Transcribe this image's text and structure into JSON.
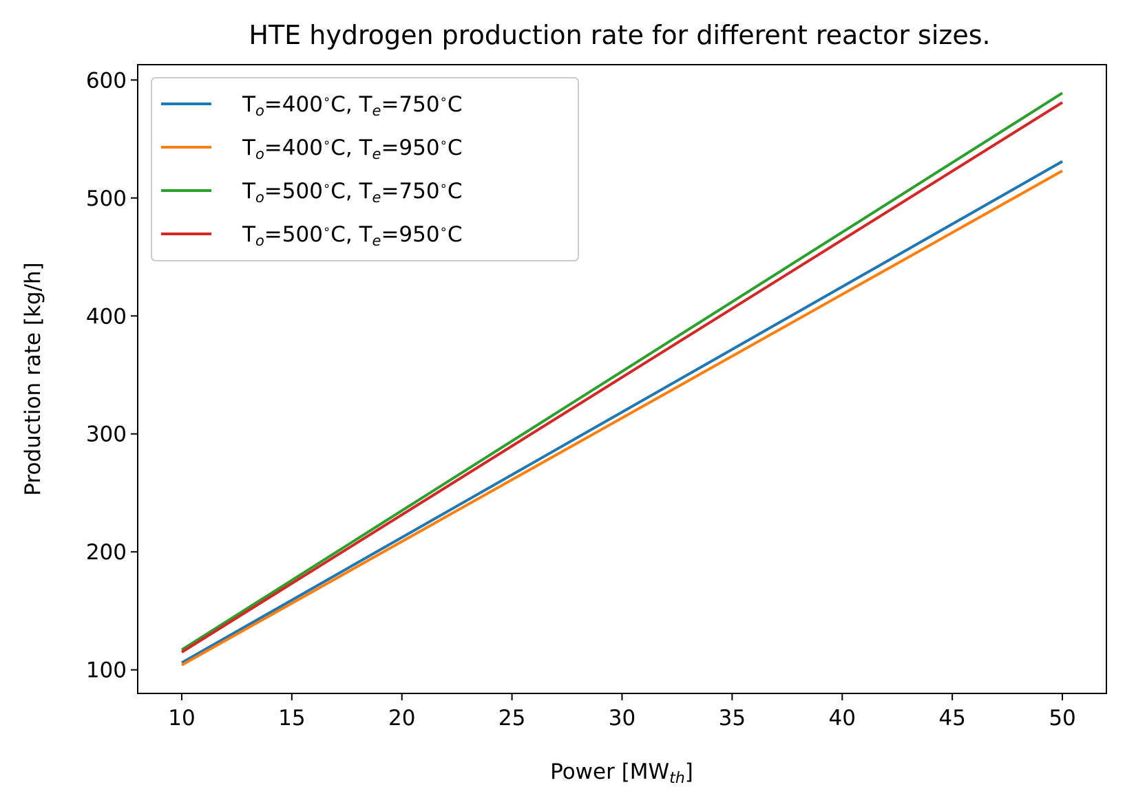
{
  "chart_data": {
    "type": "line",
    "title": "HTE hydrogen production rate for different reactor sizes.",
    "xlabel": {
      "main": "Power [MW",
      "sub": "th",
      "end": "]"
    },
    "ylabel": "Production rate [kg/h]",
    "xlim": [
      8,
      52
    ],
    "ylim": [
      80,
      613
    ],
    "xticks": [
      10,
      15,
      20,
      25,
      30,
      35,
      40,
      45,
      50
    ],
    "yticks": [
      100,
      200,
      300,
      400,
      500,
      600
    ],
    "grid": false,
    "legend_position": "upper-left",
    "series": [
      {
        "name": "To=400°C, Te=750°C",
        "label": {
          "to": "400",
          "te": "750"
        },
        "color": "#1f77b4",
        "x": [
          10,
          50
        ],
        "y": [
          106,
          531
        ]
      },
      {
        "name": "To=400°C, Te=950°C",
        "label": {
          "to": "400",
          "te": "950"
        },
        "color": "#ff7f0e",
        "x": [
          10,
          50
        ],
        "y": [
          104,
          523
        ]
      },
      {
        "name": "To=500°C, Te=750°C",
        "label": {
          "to": "500",
          "te": "750"
        },
        "color": "#2ca02c",
        "x": [
          10,
          50
        ],
        "y": [
          117,
          589
        ]
      },
      {
        "name": "To=500°C, Te=950°C",
        "label": {
          "to": "500",
          "te": "950"
        },
        "color": "#d62728",
        "x": [
          10,
          50
        ],
        "y": [
          115,
          581
        ]
      }
    ]
  }
}
